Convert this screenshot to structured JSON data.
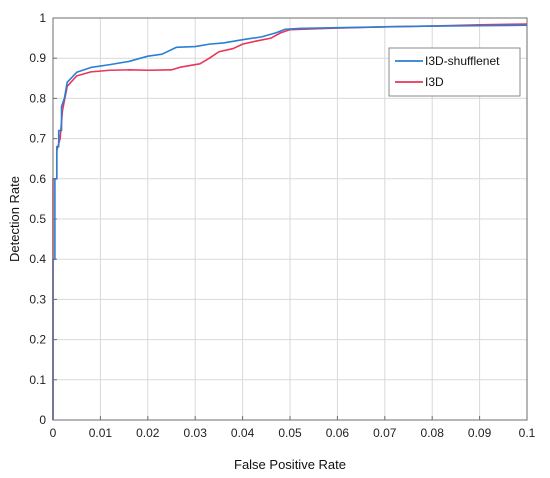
{
  "chart_data": {
    "type": "line",
    "xlabel": "False Positive Rate",
    "ylabel": "Detection Rate",
    "xlim": [
      0,
      0.1
    ],
    "ylim": [
      0,
      1
    ],
    "grid": true,
    "legend_position": "top-right",
    "x_ticks": [
      "0",
      "0.01",
      "0.02",
      "0.03",
      "0.04",
      "0.05",
      "0.06",
      "0.07",
      "0.08",
      "0.09",
      "0.1"
    ],
    "y_ticks": [
      "0",
      "0.1",
      "0.2",
      "0.3",
      "0.4",
      "0.5",
      "0.6",
      "0.7",
      "0.8",
      "0.9",
      "1"
    ],
    "series": [
      {
        "name": "I3D-shufflenet",
        "color": "#2a7fd4",
        "points": [
          [
            0,
            0
          ],
          [
            0,
            0.4
          ],
          [
            0.0004,
            0.4
          ],
          [
            0.0004,
            0.6
          ],
          [
            0.0008,
            0.6
          ],
          [
            0.0008,
            0.68
          ],
          [
            0.0012,
            0.68
          ],
          [
            0.0012,
            0.72
          ],
          [
            0.0018,
            0.72
          ],
          [
            0.0018,
            0.78
          ],
          [
            0.0024,
            0.8
          ],
          [
            0.003,
            0.84
          ],
          [
            0.005,
            0.865
          ],
          [
            0.008,
            0.877
          ],
          [
            0.012,
            0.884
          ],
          [
            0.016,
            0.892
          ],
          [
            0.02,
            0.905
          ],
          [
            0.023,
            0.91
          ],
          [
            0.026,
            0.927
          ],
          [
            0.03,
            0.929
          ],
          [
            0.033,
            0.935
          ],
          [
            0.036,
            0.938
          ],
          [
            0.04,
            0.946
          ],
          [
            0.044,
            0.953
          ],
          [
            0.047,
            0.963
          ],
          [
            0.049,
            0.972
          ],
          [
            0.052,
            0.974
          ],
          [
            0.06,
            0.976
          ],
          [
            0.07,
            0.978
          ],
          [
            0.08,
            0.98
          ],
          [
            0.09,
            0.981
          ],
          [
            0.1,
            0.982
          ]
        ]
      },
      {
        "name": "I3D",
        "color": "#e8355a",
        "points": [
          [
            0,
            0
          ],
          [
            0,
            0.6
          ],
          [
            0.0008,
            0.6
          ],
          [
            0.0008,
            0.67
          ],
          [
            0.0015,
            0.7
          ],
          [
            0.002,
            0.77
          ],
          [
            0.003,
            0.83
          ],
          [
            0.005,
            0.856
          ],
          [
            0.008,
            0.866
          ],
          [
            0.012,
            0.87
          ],
          [
            0.016,
            0.871
          ],
          [
            0.02,
            0.87
          ],
          [
            0.025,
            0.871
          ],
          [
            0.027,
            0.878
          ],
          [
            0.031,
            0.886
          ],
          [
            0.033,
            0.9
          ],
          [
            0.035,
            0.916
          ],
          [
            0.038,
            0.924
          ],
          [
            0.04,
            0.935
          ],
          [
            0.043,
            0.943
          ],
          [
            0.046,
            0.95
          ],
          [
            0.048,
            0.963
          ],
          [
            0.05,
            0.971
          ],
          [
            0.055,
            0.973
          ],
          [
            0.06,
            0.975
          ],
          [
            0.07,
            0.978
          ],
          [
            0.08,
            0.98
          ],
          [
            0.09,
            0.983
          ],
          [
            0.1,
            0.985
          ]
        ]
      }
    ]
  }
}
